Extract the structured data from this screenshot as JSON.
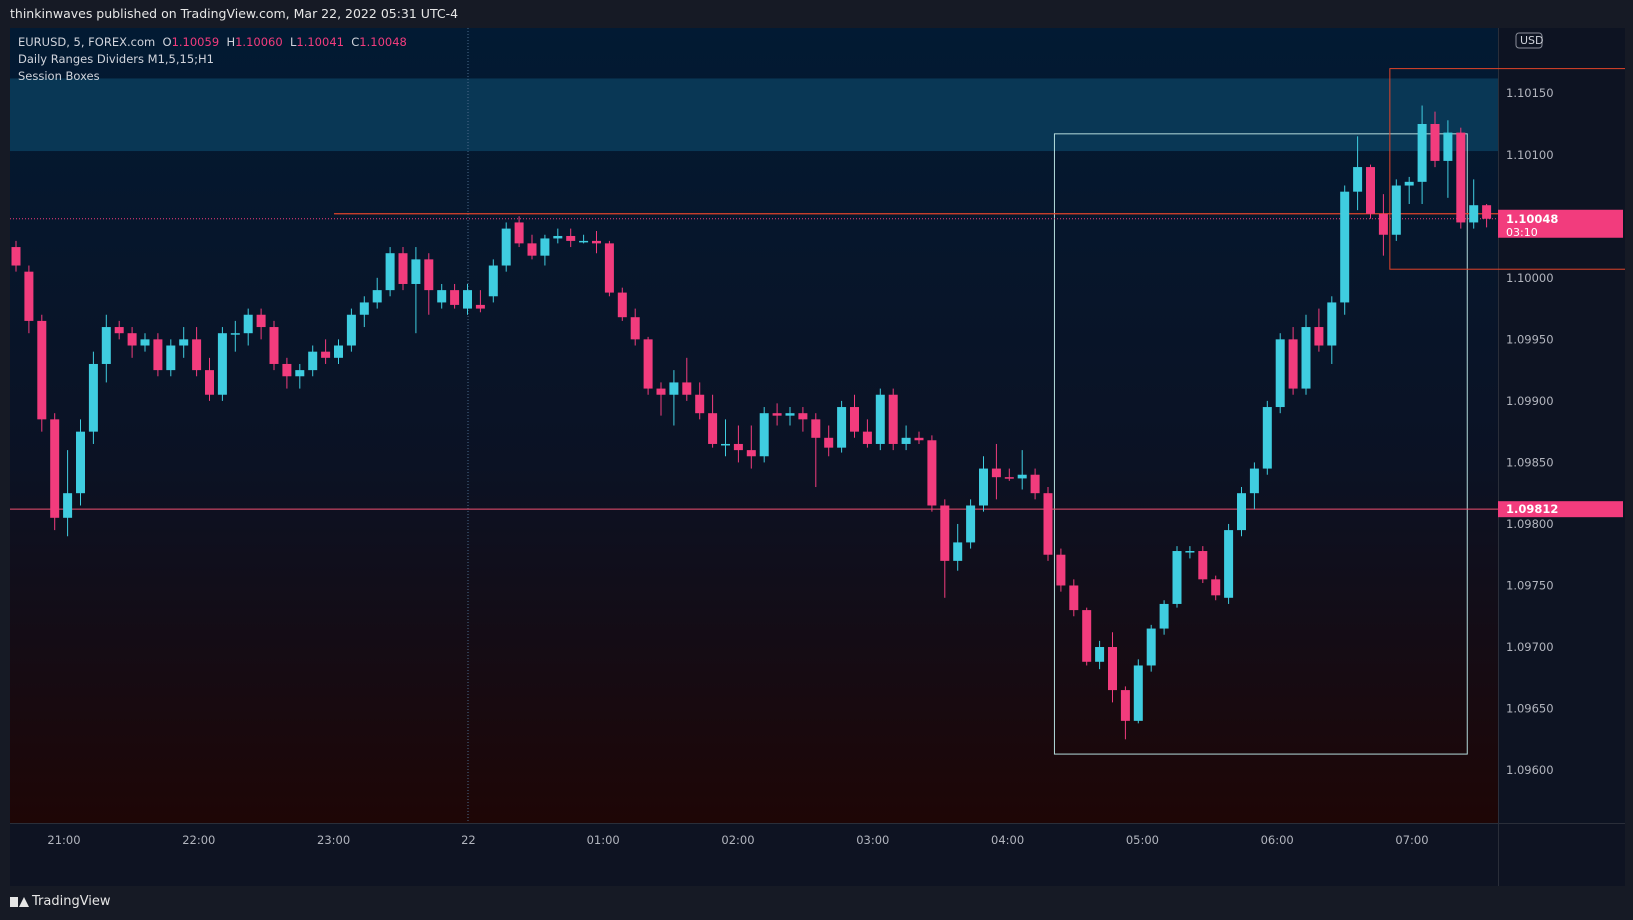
{
  "header": {
    "published": "thinkinwaves published on TradingView.com, Mar 22, 2022 05:31 UTC-4"
  },
  "legend": {
    "symbol": "EURUSD, 5, FOREX.com",
    "ohlc": {
      "O": "1.10059",
      "H": "1.10060",
      "L": "1.10041",
      "C": "1.10048"
    },
    "indicators": [
      "Daily Ranges Dividers M1,5,15;H1",
      "Session Boxes"
    ]
  },
  "footer": {
    "brand": "TradingView"
  },
  "colors": {
    "up": "#3fcde0",
    "down": "#f23c7d",
    "session_box_1": "#b4dcdc",
    "session_box_2": "#e0442a",
    "zone": "#0b3d5c",
    "price_line": "#e0442a",
    "support_line": "#f05070"
  },
  "chart_data": {
    "type": "candlestick",
    "currency": "USD",
    "x_tick_labels": [
      "21:00",
      "22:00",
      "23:00",
      "22",
      "01:00",
      "02:00",
      "03:00",
      "04:00",
      "05:00",
      "06:00",
      "07:00"
    ],
    "y_tick_labels": [
      "1.10150",
      "1.10100",
      "1.10000",
      "1.09950",
      "1.09900",
      "1.09850",
      "1.09800",
      "1.09750",
      "1.09700",
      "1.09650",
      "1.09600"
    ],
    "ylim": [
      1.09557,
      1.10203
    ],
    "price_labels": [
      {
        "price": 1.10048,
        "text": "1.10048",
        "countdown": "03:10"
      },
      {
        "price": 1.09812,
        "text": "1.09812"
      }
    ],
    "zone": {
      "from": 1.10103,
      "to": 1.10162
    },
    "session_boxes": [
      {
        "start": 81,
        "end": 112,
        "high": 1.10117,
        "low": 1.09613
      },
      {
        "start": 107,
        "end": 125,
        "high": 1.1017,
        "low": 1.10007
      }
    ],
    "candles": [
      [
        1.10025,
        1.1003,
        1.10005,
        1.1001
      ],
      [
        1.10005,
        1.1001,
        1.09955,
        1.09965
      ],
      [
        1.09965,
        1.0997,
        1.09875,
        1.09885
      ],
      [
        1.09885,
        1.0989,
        1.09795,
        1.09805
      ],
      [
        1.09805,
        1.0986,
        1.0979,
        1.09825
      ],
      [
        1.09825,
        1.09885,
        1.09815,
        1.09875
      ],
      [
        1.09875,
        1.0994,
        1.09865,
        1.0993
      ],
      [
        1.0993,
        1.0997,
        1.09915,
        1.0996
      ],
      [
        1.0996,
        1.09965,
        1.0995,
        1.09955
      ],
      [
        1.09955,
        1.0996,
        1.09935,
        1.09945
      ],
      [
        1.09945,
        1.09955,
        1.0994,
        1.0995
      ],
      [
        1.0995,
        1.09955,
        1.0992,
        1.09925
      ],
      [
        1.09925,
        1.0995,
        1.0992,
        1.09945
      ],
      [
        1.09945,
        1.0996,
        1.09935,
        1.0995
      ],
      [
        1.0995,
        1.0996,
        1.0992,
        1.09925
      ],
      [
        1.09925,
        1.09935,
        1.099,
        1.09905
      ],
      [
        1.09905,
        1.0996,
        1.099,
        1.09955
      ],
      [
        1.09955,
        1.09965,
        1.0994,
        1.09955
      ],
      [
        1.09955,
        1.09975,
        1.09945,
        1.0997
      ],
      [
        1.0997,
        1.09975,
        1.0995,
        1.0996
      ],
      [
        1.0996,
        1.09965,
        1.09925,
        1.0993
      ],
      [
        1.0993,
        1.09935,
        1.0991,
        1.0992
      ],
      [
        1.0992,
        1.0993,
        1.0991,
        1.09925
      ],
      [
        1.09925,
        1.09945,
        1.0992,
        1.0994
      ],
      [
        1.0994,
        1.0995,
        1.0993,
        1.09935
      ],
      [
        1.09935,
        1.0995,
        1.0993,
        1.09945
      ],
      [
        1.09945,
        1.09975,
        1.0994,
        1.0997
      ],
      [
        1.0997,
        1.09985,
        1.0996,
        1.0998
      ],
      [
        1.0998,
        1.1,
        1.09975,
        1.0999
      ],
      [
        1.0999,
        1.10025,
        1.09985,
        1.1002
      ],
      [
        1.1002,
        1.10025,
        1.0999,
        1.09995
      ],
      [
        1.09995,
        1.10025,
        1.09955,
        1.10015
      ],
      [
        1.10015,
        1.1002,
        1.0997,
        1.0999
      ],
      [
        1.0998,
        1.09995,
        1.09975,
        1.0999
      ],
      [
        1.0999,
        1.09995,
        1.09975,
        1.09978
      ],
      [
        1.09975,
        1.09995,
        1.0997,
        1.0999
      ],
      [
        1.09978,
        1.0999,
        1.09972,
        1.09975
      ],
      [
        1.09985,
        1.10015,
        1.0998,
        1.1001
      ],
      [
        1.1001,
        1.10045,
        1.10005,
        1.1004
      ],
      [
        1.10045,
        1.1005,
        1.10025,
        1.10028
      ],
      [
        1.10028,
        1.10035,
        1.10015,
        1.10018
      ],
      [
        1.10018,
        1.10035,
        1.1001,
        1.10032
      ],
      [
        1.10032,
        1.1004,
        1.10028,
        1.10034
      ],
      [
        1.10034,
        1.1004,
        1.10025,
        1.1003
      ],
      [
        1.1003,
        1.10035,
        1.10028,
        1.1003
      ],
      [
        1.1003,
        1.10038,
        1.1002,
        1.10028
      ],
      [
        1.10028,
        1.1003,
        1.09985,
        1.09988
      ],
      [
        1.09988,
        1.09992,
        1.09965,
        1.09968
      ],
      [
        1.09968,
        1.09975,
        1.09945,
        1.0995
      ],
      [
        1.0995,
        1.09952,
        1.09905,
        1.0991
      ],
      [
        1.0991,
        1.09915,
        1.09888,
        1.09905
      ],
      [
        1.09905,
        1.09925,
        1.0988,
        1.09915
      ],
      [
        1.09915,
        1.09935,
        1.099,
        1.09905
      ],
      [
        1.09905,
        1.09915,
        1.09885,
        1.0989
      ],
      [
        1.0989,
        1.09905,
        1.09862,
        1.09865
      ],
      [
        1.09865,
        1.09885,
        1.09855,
        1.09865
      ],
      [
        1.09865,
        1.0988,
        1.0985,
        1.0986
      ],
      [
        1.0986,
        1.0988,
        1.09845,
        1.09855
      ],
      [
        1.09855,
        1.09895,
        1.0985,
        1.0989
      ],
      [
        1.0989,
        1.09898,
        1.0988,
        1.09888
      ],
      [
        1.09888,
        1.09895,
        1.0988,
        1.0989
      ],
      [
        1.0989,
        1.09895,
        1.09875,
        1.09885
      ],
      [
        1.09885,
        1.0989,
        1.0983,
        1.0987
      ],
      [
        1.0987,
        1.0988,
        1.09855,
        1.09862
      ],
      [
        1.09862,
        1.099,
        1.09858,
        1.09895
      ],
      [
        1.09895,
        1.09905,
        1.0987,
        1.09875
      ],
      [
        1.09875,
        1.09885,
        1.09862,
        1.09865
      ],
      [
        1.09865,
        1.0991,
        1.0986,
        1.09905
      ],
      [
        1.09905,
        1.0991,
        1.0986,
        1.09865
      ],
      [
        1.09865,
        1.0988,
        1.0986,
        1.0987
      ],
      [
        1.0987,
        1.09875,
        1.09865,
        1.09868
      ],
      [
        1.09868,
        1.09872,
        1.0981,
        1.09815
      ],
      [
        1.09815,
        1.0982,
        1.0974,
        1.0977
      ],
      [
        1.0977,
        1.098,
        1.09762,
        1.09785
      ],
      [
        1.09785,
        1.0982,
        1.0978,
        1.09815
      ],
      [
        1.09815,
        1.09855,
        1.0981,
        1.09845
      ],
      [
        1.09845,
        1.09865,
        1.0982,
        1.09838
      ],
      [
        1.09838,
        1.09845,
        1.09835,
        1.09837
      ],
      [
        1.09837,
        1.0986,
        1.09828,
        1.0984
      ],
      [
        1.0984,
        1.09845,
        1.0982,
        1.09825
      ],
      [
        1.09825,
        1.0983,
        1.0977,
        1.09775
      ],
      [
        1.09775,
        1.0978,
        1.09745,
        1.0975
      ],
      [
        1.0975,
        1.09755,
        1.09725,
        1.0973
      ],
      [
        1.0973,
        1.09732,
        1.09685,
        1.09688
      ],
      [
        1.09688,
        1.09705,
        1.09682,
        1.097
      ],
      [
        1.097,
        1.09712,
        1.09655,
        1.09665
      ],
      [
        1.09665,
        1.09668,
        1.09625,
        1.0964
      ],
      [
        1.0964,
        1.0969,
        1.09638,
        1.09685
      ],
      [
        1.09685,
        1.09718,
        1.0968,
        1.09715
      ],
      [
        1.09715,
        1.09738,
        1.0971,
        1.09735
      ],
      [
        1.09735,
        1.09782,
        1.09732,
        1.09778
      ],
      [
        1.09778,
        1.09782,
        1.09772,
        1.09778
      ],
      [
        1.09778,
        1.09782,
        1.09752,
        1.09755
      ],
      [
        1.09755,
        1.09758,
        1.09738,
        1.09742
      ],
      [
        1.0974,
        1.098,
        1.09735,
        1.09795
      ],
      [
        1.09795,
        1.0983,
        1.0979,
        1.09825
      ],
      [
        1.09825,
        1.0985,
        1.09812,
        1.09845
      ],
      [
        1.09845,
        1.099,
        1.0984,
        1.09895
      ],
      [
        1.09895,
        1.09955,
        1.0989,
        1.0995
      ],
      [
        1.0995,
        1.0996,
        1.09905,
        1.0991
      ],
      [
        1.0991,
        1.0997,
        1.09905,
        1.0996
      ],
      [
        1.0996,
        1.09975,
        1.0994,
        1.09945
      ],
      [
        1.09945,
        1.09985,
        1.0993,
        1.0998
      ],
      [
        1.0998,
        1.10075,
        1.0997,
        1.1007
      ],
      [
        1.1007,
        1.10115,
        1.10055,
        1.1009
      ],
      [
        1.1009,
        1.10092,
        1.10048,
        1.10052
      ],
      [
        1.10052,
        1.10068,
        1.10018,
        1.10035
      ],
      [
        1.10035,
        1.1008,
        1.1003,
        1.10075
      ],
      [
        1.10075,
        1.10082,
        1.1006,
        1.10078
      ],
      [
        1.10078,
        1.1014,
        1.1006,
        1.10125
      ],
      [
        1.10125,
        1.10135,
        1.1009,
        1.10095
      ],
      [
        1.10095,
        1.10128,
        1.10065,
        1.10118
      ],
      [
        1.10118,
        1.10122,
        1.1004,
        1.10045
      ],
      [
        1.10045,
        1.1008,
        1.1004,
        1.10059
      ],
      [
        1.10059,
        1.1006,
        1.10041,
        1.10048
      ]
    ]
  }
}
